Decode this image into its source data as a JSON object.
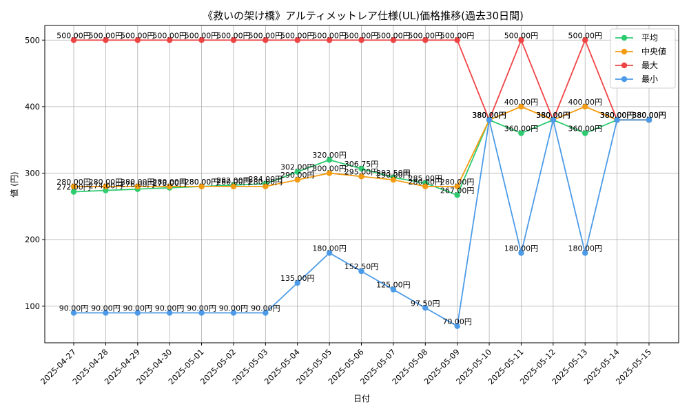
{
  "chart_data": {
    "type": "line",
    "title": "《救いの架け橋》アルティメットレア仕様(UL)価格推移(過去30日間)",
    "xlabel": "日付",
    "ylabel": "値 (円)",
    "ylim": [
      45,
      522
    ],
    "yticks": [
      100,
      200,
      300,
      400,
      500
    ],
    "grid": true,
    "legend_position": "top-right",
    "value_suffix": "円",
    "categories": [
      "2025-04-27",
      "2025-04-28",
      "2025-04-29",
      "2025-04-30",
      "2025-05-01",
      "2025-05-02",
      "2025-05-03",
      "2025-05-04",
      "2025-05-05",
      "2025-05-06",
      "2025-05-07",
      "2025-05-08",
      "2025-05-09",
      "2025-05-10",
      "2025-05-11",
      "2025-05-12",
      "2025-05-13",
      "2025-05-14",
      "2025-05-15"
    ],
    "series": [
      {
        "name": "平均",
        "color": "#2ecc71",
        "values": [
          272,
          274,
          276,
          278,
          280,
          282,
          284,
          302,
          320,
          306.75,
          293.5,
          285,
          267,
          380,
          360,
          380,
          360,
          380,
          380
        ]
      },
      {
        "name": "中央値",
        "color": "#f39c12",
        "values": [
          280,
          280,
          280,
          280,
          280,
          280,
          280,
          290,
          300,
          295,
          290,
          280,
          280,
          380,
          400,
          380,
          400,
          380,
          380
        ]
      },
      {
        "name": "最大",
        "color": "#ef4444",
        "values": [
          500,
          500,
          500,
          500,
          500,
          500,
          500,
          500,
          500,
          500,
          500,
          500,
          500,
          380,
          500,
          380,
          500,
          380,
          380
        ]
      },
      {
        "name": "最小",
        "color": "#4c9be8",
        "values": [
          90,
          90,
          90,
          90,
          90,
          90,
          90,
          135,
          180,
          152.5,
          125,
          97.5,
          70,
          380,
          180,
          380,
          180,
          380,
          380
        ]
      }
    ]
  }
}
